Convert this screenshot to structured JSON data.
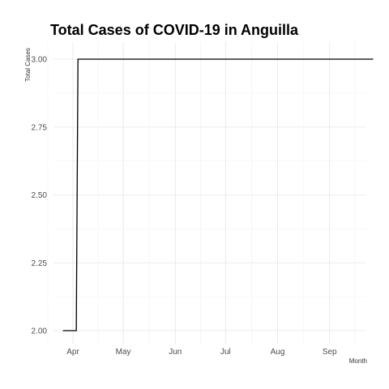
{
  "chart_data": {
    "type": "line",
    "title": "Total Cases of COVID-19 in Anguilla",
    "xlabel": "Month",
    "ylabel": "Total Cases",
    "x_tick_labels": [
      "Apr",
      "May",
      "Jun",
      "Jul",
      "Aug",
      "Sep"
    ],
    "y_tick_labels": [
      "2.00",
      "2.25",
      "2.50",
      "2.75",
      "3.00"
    ],
    "ylim": [
      2.0,
      3.0
    ],
    "grid": true,
    "legend": "none",
    "line_color": "#000000",
    "series": [
      {
        "x": [
          "2020-03-26",
          "2020-04-03",
          "2020-04-04",
          "2020-09-27"
        ],
        "y": [
          2,
          2,
          3,
          3
        ]
      }
    ]
  }
}
